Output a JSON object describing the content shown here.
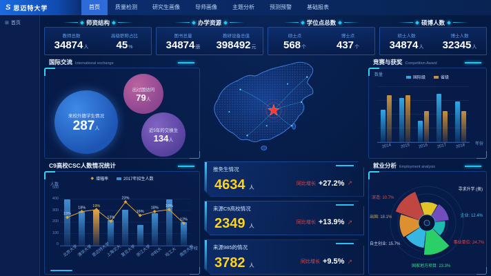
{
  "nav": {
    "logo": "思迈特大学",
    "tabs": [
      {
        "label": "首页",
        "active": true
      },
      {
        "label": "质量检测",
        "active": false
      },
      {
        "label": "研究生画像",
        "active": false
      },
      {
        "label": "导师画像",
        "active": false
      },
      {
        "label": "主题分析",
        "active": false
      },
      {
        "label": "预测预警",
        "active": false
      },
      {
        "label": "基础报表",
        "active": false
      }
    ]
  },
  "breadcrumb": {
    "icon": "grid-icon",
    "label": "首页"
  },
  "stat_cards": [
    {
      "title": "师资结构",
      "m1": {
        "label": "教师总数",
        "value": "34874",
        "unit": "人"
      },
      "m2": {
        "label": "高级职称占比",
        "value": "45",
        "unit": "%"
      }
    },
    {
      "title": "办学资源",
      "m1": {
        "label": "图书总量",
        "value": "34874",
        "unit": "册"
      },
      "m2": {
        "label": "教研设备总值",
        "value": "398492",
        "unit": "元"
      }
    },
    {
      "title": "学位点总数",
      "m1": {
        "label": "硕士点",
        "value": "568",
        "unit": "个"
      },
      "m2": {
        "label": "博士点",
        "value": "437",
        "unit": "个"
      }
    },
    {
      "title": "硕博人数",
      "m1": {
        "label": "硕士人数",
        "value": "34874",
        "unit": "人"
      },
      "m2": {
        "label": "博士人数",
        "value": "32345",
        "unit": "人"
      }
    }
  ],
  "international": {
    "title": "国际交流",
    "subtitle": "International exchange",
    "bubbles": [
      {
        "label": "来校外籍学生情况",
        "value": "287",
        "unit": "人"
      },
      {
        "label": "出过国访问",
        "value": "79",
        "unit": "人"
      },
      {
        "label": "近5年的交换生",
        "value": "134",
        "unit": "人"
      }
    ]
  },
  "panels": {
    "competition": {
      "title": "竞赛与获奖",
      "subtitle": "Competition Award"
    },
    "csc": {
      "title": "C9高校CSC人数情况统计"
    },
    "employment": {
      "title": "就业分析",
      "subtitle": "Employment analysis"
    }
  },
  "center_stats": [
    {
      "title": "推免生情况",
      "value": "4634",
      "unit": "人",
      "growth_label": "同比增长",
      "growth": "+27.2%"
    },
    {
      "title": "来源C9高校情况",
      "value": "2349",
      "unit": "人",
      "growth_label": "同比增长",
      "growth": "+13.9%"
    },
    {
      "title": "来源985的情况",
      "value": "3782",
      "unit": "人",
      "growth_label": "同比增长",
      "growth": "+9.5%"
    }
  ],
  "chart_data": [
    {
      "id": "competition",
      "type": "bar",
      "title": "竞赛与获奖 Competition Award",
      "categories": [
        "2014",
        "2015",
        "2016",
        "2017",
        "2018"
      ],
      "series": [
        {
          "name": "国际级",
          "color": "#2fa8e8",
          "values": [
            230,
            310,
            150,
            340,
            290
          ]
        },
        {
          "name": "省级",
          "color": "#c8913a",
          "values": [
            330,
            330,
            220,
            220,
            220
          ]
        }
      ],
      "xlabel": "年份",
      "ylabel": "数量",
      "ylim": [
        0,
        400
      ],
      "legend_position": "top",
      "grid": true
    },
    {
      "id": "csc",
      "type": "bar",
      "title": "C9高校CSC人数情况统计",
      "categories": [
        "北京大学",
        "清华大学",
        "思迈特大学",
        "上海交大",
        "复旦大学",
        "浙江大学",
        "中科大",
        "哈工大",
        "南京大学"
      ],
      "series": [
        {
          "name": "2017年招生人数",
          "kind": "bar",
          "color": "#3f8fd4",
          "highlight_color": "#e8a33d",
          "highlight_index": 2,
          "values": [
            400,
            300,
            310,
            220,
            310,
            180,
            280,
            400,
            200
          ]
        },
        {
          "name": "增幅率",
          "kind": "line",
          "color": "#d9a43a",
          "values_pct": [
            15,
            18,
            19,
            13,
            23,
            16,
            18,
            19,
            12
          ]
        }
      ],
      "xlabel": "学校",
      "ylabel": "人数",
      "ylim": [
        0,
        500
      ],
      "yticks": [
        500,
        400,
        300,
        200,
        100,
        0
      ],
      "legend_position": "top",
      "grid": true
    },
    {
      "id": "employment",
      "type": "pie",
      "title": "就业分析 Employment analysis",
      "slices": [
        {
          "name": "事业单位",
          "pct": 24.7,
          "color": "#cf4a41"
        },
        {
          "name": "深造",
          "pct": 10.7,
          "color": "#f5d327"
        },
        {
          "name": "企业",
          "pct": 12.4,
          "color": "#7b52c9"
        },
        {
          "name": "寻求升学 (类)",
          "pct": 8.0,
          "color": "#1ec8b8"
        },
        {
          "name": "国家地方项目",
          "pct": 23.3,
          "color": "#2ee06a"
        },
        {
          "name": "自主创业",
          "pct": 15.7,
          "color": "#3bc3f0"
        },
        {
          "name": "出国",
          "pct": 18.1,
          "color": "#f09a2e"
        }
      ],
      "labels": [
        {
          "text": "深造: 10.7%",
          "color": "#e05050"
        },
        {
          "text": "出国: 18.1%",
          "color": "#d9a43a"
        },
        {
          "text": "自主创业: 15.7%",
          "color": "#c9d6ea"
        },
        {
          "text": "寻求升学 (类)",
          "color": "#dfe8f5"
        },
        {
          "text": "企业: 12.4%",
          "color": "#49c8e8"
        },
        {
          "text": "事业单位: 24.7%",
          "color": "#e05050"
        },
        {
          "text": "国家地方项目: 23.3%",
          "color": "#3fd98f"
        }
      ]
    }
  ],
  "colors": {
    "accent": "#29c6f2",
    "number_yellow": "#ffd21f",
    "growth_red": "#e04b4b",
    "map_star_red": "#ff3b30",
    "panel_border": "#2b62c0"
  }
}
